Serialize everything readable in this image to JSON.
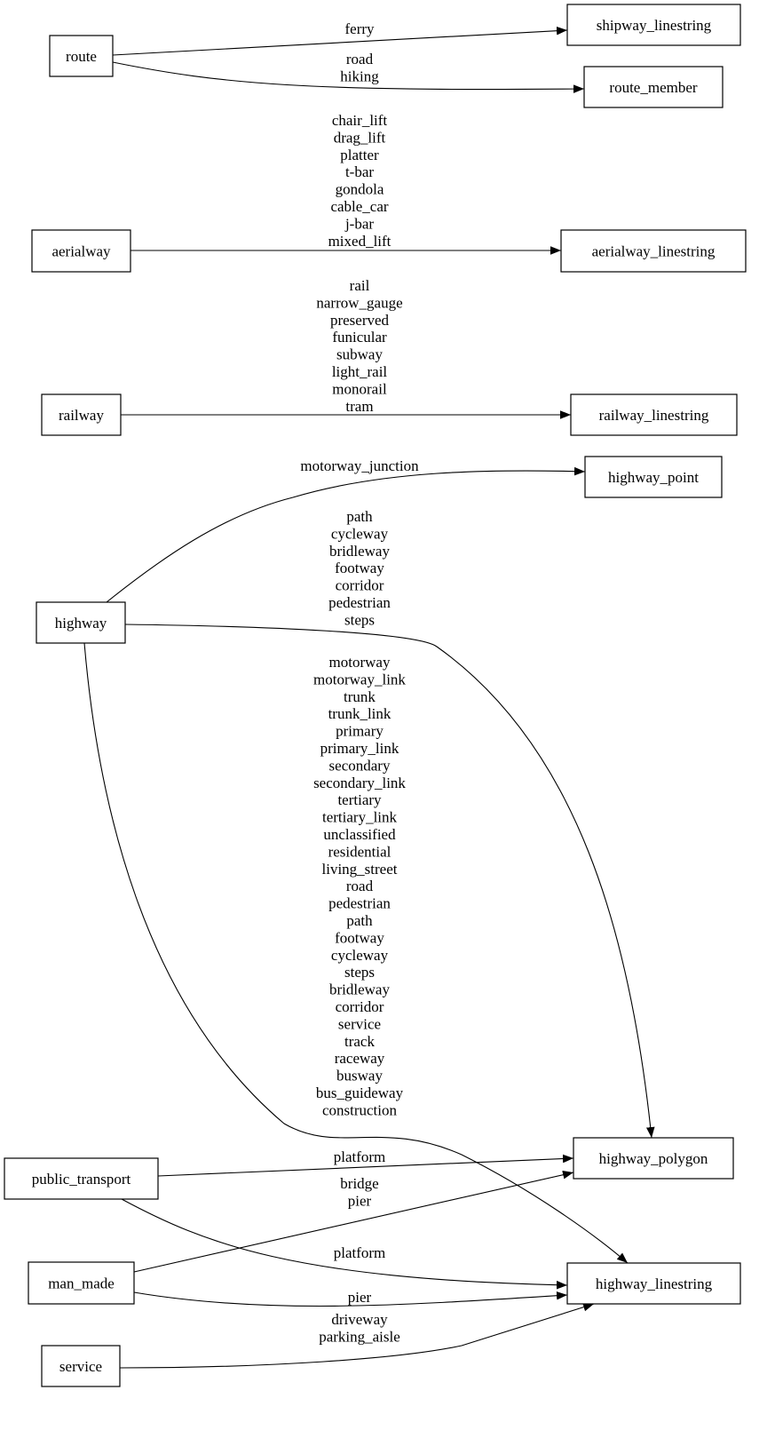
{
  "nodes": {
    "route": "route",
    "shipway_linestring": "shipway_linestring",
    "route_member": "route_member",
    "aerialway": "aerialway",
    "aerialway_linestring": "aerialway_linestring",
    "railway": "railway",
    "railway_linestring": "railway_linestring",
    "highway_point": "highway_point",
    "highway": "highway",
    "highway_polygon": "highway_polygon",
    "public_transport": "public_transport",
    "highway_linestring": "highway_linestring",
    "man_made": "man_made",
    "service": "service"
  },
  "edges": [
    {
      "from": "route",
      "to": "shipway_linestring",
      "labels": [
        "ferry"
      ]
    },
    {
      "from": "route",
      "to": "route_member",
      "labels": [
        "road",
        "hiking"
      ]
    },
    {
      "from": "aerialway",
      "to": "aerialway_linestring",
      "labels": [
        "chair_lift",
        "drag_lift",
        "platter",
        "t-bar",
        "gondola",
        "cable_car",
        "j-bar",
        "mixed_lift"
      ]
    },
    {
      "from": "railway",
      "to": "railway_linestring",
      "labels": [
        "rail",
        "narrow_gauge",
        "preserved",
        "funicular",
        "subway",
        "light_rail",
        "monorail",
        "tram"
      ]
    },
    {
      "from": "highway",
      "to": "highway_point",
      "labels": [
        "motorway_junction"
      ]
    },
    {
      "from": "highway",
      "to": "highway_polygon",
      "labels": [
        "path",
        "cycleway",
        "bridleway",
        "footway",
        "corridor",
        "pedestrian",
        "steps"
      ]
    },
    {
      "from": "highway",
      "to": "highway_linestring",
      "labels": [
        "motorway",
        "motorway_link",
        "trunk",
        "trunk_link",
        "primary",
        "primary_link",
        "secondary",
        "secondary_link",
        "tertiary",
        "tertiary_link",
        "unclassified",
        "residential",
        "living_street",
        "road",
        "pedestrian",
        "path",
        "footway",
        "cycleway",
        "steps",
        "bridleway",
        "corridor",
        "service",
        "track",
        "raceway",
        "busway",
        "bus_guideway",
        "construction"
      ]
    },
    {
      "from": "public_transport",
      "to": "highway_polygon",
      "labels": [
        "platform"
      ]
    },
    {
      "from": "public_transport",
      "to": "highway_linestring",
      "labels": [
        "platform"
      ]
    },
    {
      "from": "man_made",
      "to": "highway_polygon",
      "labels": [
        "bridge",
        "pier"
      ]
    },
    {
      "from": "man_made",
      "to": "highway_linestring",
      "labels": [
        "pier"
      ]
    },
    {
      "from": "service",
      "to": "highway_linestring",
      "labels": [
        "driveway",
        "parking_aisle"
      ]
    }
  ]
}
